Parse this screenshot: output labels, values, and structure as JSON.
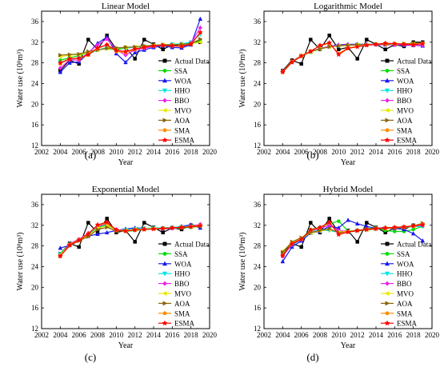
{
  "figure": {
    "panel_labels": [
      "(a)",
      "(b)",
      "(c)",
      "(d)"
    ],
    "x_tick_labels": [
      "2002",
      "2004",
      "2006",
      "2008",
      "2010",
      "2012",
      "2014",
      "2016",
      "2018",
      "2020"
    ],
    "y_tick_labels": [
      "12",
      "16",
      "20",
      "24",
      "28",
      "32",
      "36"
    ]
  },
  "legend": {
    "entries": [
      "Actual Data",
      "SSA",
      "WOA",
      "HHO",
      "BBO",
      "MVO",
      "AOA",
      "SMA",
      "ESMA"
    ]
  },
  "series_style": [
    {
      "name": "Actual Data",
      "color": "#000000",
      "marker": "square"
    },
    {
      "name": "SSA",
      "color": "#00dd00",
      "marker": "circle"
    },
    {
      "name": "WOA",
      "color": "#1a1aee",
      "marker": "triangle-up"
    },
    {
      "name": "HHO",
      "color": "#00e5e5",
      "marker": "triangle-down"
    },
    {
      "name": "BBO",
      "color": "#ee22ee",
      "marker": "diamond"
    },
    {
      "name": "MVO",
      "color": "#e8e800",
      "marker": "triangle-left"
    },
    {
      "name": "AOA",
      "color": "#8b6508",
      "marker": "triangle-right"
    },
    {
      "name": "SMA",
      "color": "#ff8c00",
      "marker": "circle"
    },
    {
      "name": "ESMA",
      "color": "#ff0000",
      "marker": "star"
    }
  ],
  "chart_data": [
    {
      "type": "line",
      "title": "Linear Model",
      "xlabel": "Year",
      "ylabel": "Water use (10⁸m³)",
      "xlim": [
        2002,
        2020
      ],
      "ylim": [
        12,
        38
      ],
      "x": [
        2004,
        2005,
        2006,
        2007,
        2008,
        2009,
        2010,
        2011,
        2012,
        2013,
        2014,
        2015,
        2016,
        2017,
        2018,
        2019
      ],
      "series": [
        {
          "name": "Actual Data",
          "values": [
            26.5,
            28.5,
            27.8,
            32.5,
            30.6,
            33.3,
            30.6,
            31.0,
            28.8,
            32.5,
            31.6,
            30.6,
            31.5,
            31.2,
            32.0,
            32.0
          ]
        },
        {
          "name": "SSA",
          "values": [
            28.5,
            29.0,
            29.4,
            30.0,
            30.5,
            30.8,
            30.5,
            30.9,
            31.0,
            31.2,
            31.4,
            31.5,
            31.5,
            31.6,
            31.8,
            32.3
          ]
        },
        {
          "name": "WOA",
          "values": [
            26.2,
            28.0,
            28.2,
            29.8,
            31.8,
            33.0,
            29.8,
            28.1,
            30.0,
            30.5,
            31.0,
            31.3,
            31.0,
            30.9,
            31.5,
            36.5
          ]
        },
        {
          "name": "HHO",
          "values": [
            28.0,
            28.6,
            29.0,
            29.6,
            30.5,
            31.0,
            30.8,
            30.9,
            31.0,
            31.2,
            31.4,
            31.5,
            31.6,
            31.7,
            32.0,
            33.5
          ]
        },
        {
          "name": "BBO",
          "values": [
            27.0,
            28.6,
            28.5,
            30.0,
            31.5,
            32.6,
            30.5,
            29.5,
            30.5,
            30.8,
            31.2,
            31.4,
            31.3,
            31.2,
            31.8,
            34.8
          ]
        },
        {
          "name": "MVO",
          "values": [
            29.2,
            29.5,
            29.6,
            30.0,
            30.5,
            30.8,
            30.8,
            31.0,
            31.1,
            31.2,
            31.4,
            31.5,
            31.5,
            31.6,
            31.7,
            32.0
          ]
        },
        {
          "name": "AOA",
          "values": [
            29.5,
            29.6,
            29.7,
            30.2,
            30.5,
            30.8,
            30.9,
            31.0,
            31.1,
            31.3,
            31.4,
            31.5,
            31.5,
            31.6,
            31.7,
            32.6
          ]
        },
        {
          "name": "SMA",
          "values": [
            27.8,
            28.8,
            28.8,
            29.5,
            30.8,
            31.5,
            30.2,
            30.0,
            30.6,
            31.0,
            31.3,
            31.4,
            31.3,
            31.2,
            31.6,
            33.8
          ]
        },
        {
          "name": "ESMA",
          "values": [
            28.0,
            28.8,
            28.9,
            29.6,
            30.9,
            31.5,
            30.4,
            30.2,
            30.7,
            31.0,
            31.3,
            31.4,
            31.3,
            31.2,
            31.6,
            33.9
          ]
        }
      ]
    },
    {
      "type": "line",
      "title": "Logarithmic Model",
      "xlabel": "Year",
      "ylabel": "Water use (10⁸m³)",
      "xlim": [
        2002,
        2020
      ],
      "ylim": [
        12,
        38
      ],
      "x": [
        2004,
        2005,
        2006,
        2007,
        2008,
        2009,
        2010,
        2011,
        2012,
        2013,
        2014,
        2015,
        2016,
        2017,
        2018,
        2019
      ],
      "series": [
        {
          "name": "Actual Data",
          "values": [
            26.5,
            28.5,
            27.8,
            32.5,
            30.6,
            33.3,
            30.6,
            31.0,
            28.8,
            32.5,
            31.6,
            30.6,
            31.5,
            31.2,
            32.0,
            32.0
          ]
        },
        {
          "name": "SSA",
          "values": [
            26.3,
            28.2,
            29.3,
            30.1,
            30.7,
            31.1,
            31.3,
            31.4,
            31.5,
            31.5,
            31.6,
            31.6,
            31.6,
            31.6,
            31.7,
            31.7
          ]
        },
        {
          "name": "WOA",
          "values": [
            26.4,
            28.3,
            29.4,
            30.2,
            30.8,
            31.2,
            31.5,
            31.6,
            31.6,
            31.6,
            31.6,
            31.5,
            31.5,
            31.4,
            31.4,
            31.3
          ]
        },
        {
          "name": "HHO",
          "values": [
            26.3,
            28.2,
            29.3,
            30.1,
            30.7,
            31.1,
            31.3,
            31.4,
            31.5,
            31.5,
            31.6,
            31.6,
            31.6,
            31.6,
            31.7,
            31.7
          ]
        },
        {
          "name": "BBO",
          "values": [
            26.4,
            28.3,
            29.4,
            30.2,
            30.8,
            31.2,
            31.4,
            31.5,
            31.5,
            31.5,
            31.5,
            31.5,
            31.5,
            31.5,
            31.4,
            31.4
          ]
        },
        {
          "name": "MVO",
          "values": [
            26.3,
            28.2,
            29.3,
            30.1,
            30.7,
            31.1,
            31.3,
            31.4,
            31.5,
            31.5,
            31.6,
            31.6,
            31.6,
            31.7,
            31.7,
            31.7
          ]
        },
        {
          "name": "AOA",
          "values": [
            26.4,
            28.3,
            29.4,
            30.2,
            30.7,
            31.1,
            31.3,
            31.4,
            31.5,
            31.5,
            31.6,
            31.6,
            31.7,
            31.7,
            31.8,
            31.8
          ]
        },
        {
          "name": "SMA",
          "values": [
            26.2,
            28.2,
            29.4,
            30.3,
            31.3,
            31.8,
            29.8,
            30.9,
            31.2,
            31.5,
            31.6,
            31.8,
            31.7,
            31.6,
            31.6,
            31.8
          ]
        },
        {
          "name": "ESMA",
          "values": [
            26.2,
            28.1,
            29.3,
            30.2,
            31.4,
            31.9,
            29.6,
            30.8,
            31.1,
            31.4,
            31.6,
            31.8,
            31.7,
            31.6,
            31.5,
            31.7
          ]
        }
      ]
    },
    {
      "type": "line",
      "title": "Exponential Model",
      "xlabel": "Year",
      "ylabel": "Water use (10⁸m³)",
      "xlim": [
        2002,
        2020
      ],
      "ylim": [
        12,
        38
      ],
      "x": [
        2004,
        2005,
        2006,
        2007,
        2008,
        2009,
        2010,
        2011,
        2012,
        2013,
        2014,
        2015,
        2016,
        2017,
        2018,
        2019
      ],
      "series": [
        {
          "name": "Actual Data",
          "values": [
            26.5,
            28.5,
            27.8,
            32.5,
            30.6,
            33.3,
            30.6,
            31.0,
            28.8,
            32.5,
            31.6,
            30.6,
            31.5,
            31.2,
            32.0,
            32.0
          ]
        },
        {
          "name": "SSA",
          "values": [
            26.5,
            28.4,
            29.3,
            30.2,
            31.6,
            32.2,
            31.0,
            30.8,
            31.0,
            31.2,
            31.3,
            31.3,
            31.4,
            31.5,
            31.6,
            31.8
          ]
        },
        {
          "name": "WOA",
          "values": [
            27.6,
            28.1,
            29.2,
            29.9,
            30.3,
            30.6,
            31.0,
            31.3,
            31.5,
            31.4,
            31.4,
            31.3,
            31.5,
            31.8,
            32.1,
            31.5
          ]
        },
        {
          "name": "HHO",
          "values": [
            26.4,
            28.3,
            29.2,
            30.2,
            31.5,
            32.0,
            31.1,
            31.1,
            31.3,
            31.4,
            31.5,
            31.5,
            31.6,
            31.7,
            31.8,
            31.9
          ]
        },
        {
          "name": "BBO",
          "values": [
            26.2,
            28.4,
            29.3,
            30.5,
            31.8,
            32.3,
            31.2,
            30.9,
            31.1,
            31.3,
            31.4,
            31.3,
            31.4,
            31.6,
            31.8,
            32.2
          ]
        },
        {
          "name": "MVO",
          "values": [
            26.3,
            28.2,
            29.1,
            30.0,
            31.4,
            31.9,
            31.0,
            31.0,
            31.2,
            31.3,
            31.4,
            31.4,
            31.5,
            31.6,
            31.7,
            31.8
          ]
        },
        {
          "name": "AOA",
          "values": [
            26.1,
            28.0,
            29.0,
            29.8,
            31.2,
            31.6,
            30.9,
            30.9,
            31.1,
            31.2,
            31.3,
            31.4,
            31.5,
            31.6,
            31.7,
            31.8
          ]
        },
        {
          "name": "SMA",
          "values": [
            26.0,
            28.3,
            29.2,
            30.4,
            32.0,
            32.4,
            31.0,
            30.9,
            31.1,
            31.2,
            31.3,
            31.4,
            31.5,
            31.6,
            31.8,
            32.0
          ]
        },
        {
          "name": "ESMA",
          "values": [
            26.0,
            28.2,
            29.1,
            30.3,
            32.1,
            32.6,
            31.1,
            30.9,
            31.1,
            31.2,
            31.3,
            31.4,
            31.5,
            31.6,
            31.7,
            31.9
          ]
        }
      ]
    },
    {
      "type": "line",
      "title": "Hybrid Model",
      "xlabel": "Year",
      "ylabel": "Water use (10⁸m³)",
      "xlim": [
        2002,
        2020
      ],
      "ylim": [
        12,
        38
      ],
      "x": [
        2004,
        2005,
        2006,
        2007,
        2008,
        2009,
        2010,
        2011,
        2012,
        2013,
        2014,
        2015,
        2016,
        2017,
        2018,
        2019
      ],
      "series": [
        {
          "name": "Actual Data",
          "values": [
            26.5,
            28.5,
            27.8,
            32.5,
            30.6,
            33.3,
            30.6,
            31.0,
            28.8,
            32.5,
            31.6,
            30.6,
            31.5,
            31.2,
            32.0,
            32.0
          ]
        },
        {
          "name": "SSA",
          "values": [
            26.0,
            28.5,
            29.4,
            31.2,
            31.6,
            32.3,
            32.8,
            30.9,
            31.0,
            31.3,
            31.6,
            31.0,
            30.8,
            30.8,
            31.2,
            31.8
          ]
        },
        {
          "name": "WOA",
          "values": [
            25.0,
            27.8,
            29.0,
            30.5,
            30.8,
            31.8,
            31.5,
            33.0,
            32.3,
            31.8,
            31.4,
            31.6,
            31.4,
            31.2,
            30.4,
            29.0
          ]
        },
        {
          "name": "HHO",
          "values": [
            26.5,
            28.2,
            29.2,
            30.8,
            31.0,
            31.0,
            30.6,
            30.8,
            31.0,
            31.2,
            31.3,
            31.4,
            31.5,
            31.6,
            31.7,
            31.8
          ]
        },
        {
          "name": "BBO",
          "values": [
            26.0,
            28.3,
            29.3,
            30.9,
            31.4,
            32.0,
            31.0,
            30.8,
            31.0,
            31.2,
            31.3,
            31.4,
            31.5,
            31.6,
            31.8,
            32.0
          ]
        },
        {
          "name": "MVO",
          "values": [
            27.0,
            28.6,
            29.5,
            30.5,
            30.9,
            31.2,
            30.7,
            30.8,
            31.0,
            31.1,
            31.3,
            31.4,
            31.5,
            31.6,
            31.8,
            32.2
          ]
        },
        {
          "name": "AOA",
          "values": [
            26.8,
            28.8,
            29.6,
            30.6,
            31.0,
            31.3,
            30.6,
            30.7,
            30.9,
            31.1,
            31.3,
            31.4,
            31.5,
            31.6,
            31.9,
            32.4
          ]
        },
        {
          "name": "SMA",
          "values": [
            26.2,
            28.5,
            29.4,
            31.0,
            31.5,
            32.5,
            30.3,
            30.8,
            31.0,
            31.2,
            31.4,
            31.5,
            31.6,
            31.7,
            31.9,
            32.2
          ]
        },
        {
          "name": "ESMA",
          "values": [
            26.1,
            28.4,
            29.3,
            31.1,
            31.6,
            32.6,
            30.2,
            30.7,
            31.0,
            31.2,
            31.4,
            31.5,
            31.6,
            31.7,
            31.9,
            32.1
          ]
        }
      ]
    }
  ]
}
